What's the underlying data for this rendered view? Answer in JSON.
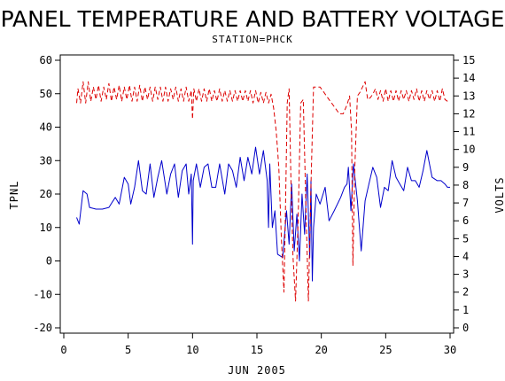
{
  "chart_data": {
    "type": "line",
    "title": "PANEL TEMPERATURE AND BATTERY VOLTAGE",
    "subtitle": "STATION=PHCK",
    "xlabel": "JUN 2005",
    "ylabel_left": "TPNL",
    "ylabel_right": "VOLTS",
    "xlim": [
      0,
      30
    ],
    "ylim_left": [
      -20,
      60
    ],
    "ylim_right": [
      0,
      15
    ],
    "x_ticks": [
      0,
      5,
      10,
      15,
      20,
      25,
      30
    ],
    "y_ticks_left": [
      -20,
      -10,
      0,
      10,
      20,
      30,
      40,
      50,
      60
    ],
    "y_ticks_right": [
      0,
      1,
      2,
      3,
      4,
      5,
      6,
      7,
      8,
      9,
      10,
      11,
      12,
      13,
      14,
      15
    ],
    "grid": false,
    "series": [
      {
        "axis": "left",
        "color": "#0000cc",
        "style": "solid",
        "points": [
          [
            1.0,
            13
          ],
          [
            1.2,
            11
          ],
          [
            1.5,
            21
          ],
          [
            1.8,
            20
          ],
          [
            2.0,
            16
          ],
          [
            2.5,
            15.5
          ],
          [
            3.0,
            15.5
          ],
          [
            3.5,
            16
          ],
          [
            4.0,
            19
          ],
          [
            4.3,
            17
          ],
          [
            4.7,
            25
          ],
          [
            5.0,
            23
          ],
          [
            5.2,
            17
          ],
          [
            5.5,
            22
          ],
          [
            5.8,
            30
          ],
          [
            6.1,
            21
          ],
          [
            6.4,
            20
          ],
          [
            6.7,
            29
          ],
          [
            7.0,
            19
          ],
          [
            7.3,
            25
          ],
          [
            7.6,
            30
          ],
          [
            8.0,
            20
          ],
          [
            8.3,
            26
          ],
          [
            8.6,
            29
          ],
          [
            8.9,
            19
          ],
          [
            9.2,
            27
          ],
          [
            9.5,
            29
          ],
          [
            9.7,
            20
          ],
          [
            9.9,
            26
          ],
          [
            10.0,
            5
          ],
          [
            10.05,
            24
          ],
          [
            10.3,
            29
          ],
          [
            10.6,
            22
          ],
          [
            10.9,
            28
          ],
          [
            11.2,
            29
          ],
          [
            11.5,
            22
          ],
          [
            11.8,
            22
          ],
          [
            12.1,
            29
          ],
          [
            12.5,
            20
          ],
          [
            12.8,
            29
          ],
          [
            13.1,
            27
          ],
          [
            13.4,
            22
          ],
          [
            13.7,
            31
          ],
          [
            14.0,
            24
          ],
          [
            14.3,
            31
          ],
          [
            14.6,
            26
          ],
          [
            14.9,
            34
          ],
          [
            15.2,
            26
          ],
          [
            15.5,
            33
          ],
          [
            15.8,
            24
          ],
          [
            15.9,
            10
          ],
          [
            16.0,
            29
          ],
          [
            16.2,
            10
          ],
          [
            16.4,
            15
          ],
          [
            16.6,
            2
          ],
          [
            17.0,
            1
          ],
          [
            17.3,
            15
          ],
          [
            17.5,
            5
          ],
          [
            17.7,
            23
          ],
          [
            17.9,
            3
          ],
          [
            18.1,
            14
          ],
          [
            18.3,
            0
          ],
          [
            18.5,
            20
          ],
          [
            18.7,
            8
          ],
          [
            18.9,
            26
          ],
          [
            19.1,
            1
          ],
          [
            19.2,
            24
          ],
          [
            19.3,
            -6
          ],
          [
            19.4,
            10
          ],
          [
            19.6,
            20
          ],
          [
            19.9,
            17
          ],
          [
            20.3,
            22
          ],
          [
            20.6,
            12
          ],
          [
            21.0,
            15
          ],
          [
            21.5,
            19
          ],
          [
            21.8,
            22
          ],
          [
            22.0,
            23
          ],
          [
            22.1,
            28
          ],
          [
            22.3,
            15
          ],
          [
            22.5,
            29
          ],
          [
            22.8,
            18
          ],
          [
            23.1,
            3
          ],
          [
            23.4,
            18
          ],
          [
            23.7,
            23
          ],
          [
            24.0,
            28
          ],
          [
            24.3,
            25
          ],
          [
            24.6,
            16
          ],
          [
            24.9,
            22
          ],
          [
            25.2,
            21
          ],
          [
            25.5,
            30
          ],
          [
            25.8,
            25
          ],
          [
            26.1,
            23
          ],
          [
            26.4,
            21
          ],
          [
            26.7,
            28
          ],
          [
            27.0,
            24
          ],
          [
            27.3,
            24
          ],
          [
            27.6,
            22
          ],
          [
            27.9,
            27
          ],
          [
            28.2,
            33
          ],
          [
            28.6,
            25
          ],
          [
            29.0,
            24
          ],
          [
            29.3,
            24
          ],
          [
            29.6,
            23
          ],
          [
            29.8,
            22
          ],
          [
            30.0,
            22
          ]
        ]
      },
      {
        "axis": "right",
        "color": "#dd0000",
        "style": "dashed",
        "points": [
          [
            1.0,
            12.6
          ],
          [
            1.1,
            13.4
          ],
          [
            1.3,
            12.6
          ],
          [
            1.5,
            13.8
          ],
          [
            1.7,
            12.6
          ],
          [
            1.9,
            13.8
          ],
          [
            2.1,
            12.7
          ],
          [
            2.3,
            13.5
          ],
          [
            2.5,
            12.8
          ],
          [
            2.7,
            13.6
          ],
          [
            2.9,
            12.7
          ],
          [
            3.1,
            13.5
          ],
          [
            3.3,
            12.8
          ],
          [
            3.5,
            13.7
          ],
          [
            3.7,
            12.7
          ],
          [
            3.9,
            13.5
          ],
          [
            4.1,
            12.8
          ],
          [
            4.3,
            13.6
          ],
          [
            4.5,
            12.7
          ],
          [
            4.7,
            13.5
          ],
          [
            4.9,
            12.8
          ],
          [
            5.1,
            13.6
          ],
          [
            5.3,
            12.7
          ],
          [
            5.5,
            13.5
          ],
          [
            5.7,
            12.7
          ],
          [
            5.9,
            13.6
          ],
          [
            6.1,
            12.7
          ],
          [
            6.3,
            13.5
          ],
          [
            6.5,
            12.8
          ],
          [
            6.7,
            13.5
          ],
          [
            6.9,
            12.7
          ],
          [
            7.1,
            13.5
          ],
          [
            7.3,
            12.8
          ],
          [
            7.5,
            13.5
          ],
          [
            7.7,
            12.7
          ],
          [
            7.9,
            13.5
          ],
          [
            8.1,
            12.7
          ],
          [
            8.3,
            13.4
          ],
          [
            8.5,
            12.8
          ],
          [
            8.7,
            13.5
          ],
          [
            8.9,
            12.7
          ],
          [
            9.1,
            13.4
          ],
          [
            9.3,
            12.7
          ],
          [
            9.5,
            13.5
          ],
          [
            9.7,
            12.7
          ],
          [
            9.9,
            13.3
          ],
          [
            10.0,
            11.7
          ],
          [
            10.1,
            13.4
          ],
          [
            10.3,
            12.7
          ],
          [
            10.5,
            13.4
          ],
          [
            10.7,
            12.7
          ],
          [
            10.9,
            13.4
          ],
          [
            11.1,
            12.7
          ],
          [
            11.3,
            13.4
          ],
          [
            11.5,
            12.7
          ],
          [
            11.7,
            13.3
          ],
          [
            11.9,
            12.7
          ],
          [
            12.1,
            13.4
          ],
          [
            12.3,
            12.7
          ],
          [
            12.5,
            13.3
          ],
          [
            12.7,
            12.7
          ],
          [
            12.9,
            13.3
          ],
          [
            13.1,
            12.7
          ],
          [
            13.3,
            13.3
          ],
          [
            13.5,
            12.7
          ],
          [
            13.7,
            13.3
          ],
          [
            13.9,
            12.7
          ],
          [
            14.1,
            13.3
          ],
          [
            14.3,
            12.7
          ],
          [
            14.5,
            13.3
          ],
          [
            14.7,
            12.6
          ],
          [
            14.9,
            13.3
          ],
          [
            15.1,
            12.6
          ],
          [
            15.3,
            13.2
          ],
          [
            15.5,
            12.6
          ],
          [
            15.7,
            13.2
          ],
          [
            15.9,
            12.6
          ],
          [
            16.1,
            13.1
          ],
          [
            16.3,
            12.3
          ],
          [
            16.5,
            11.0
          ],
          [
            16.7,
            9.0
          ],
          [
            16.9,
            5.0
          ],
          [
            17.1,
            2.0
          ],
          [
            17.2,
            6.0
          ],
          [
            17.35,
            12.6
          ],
          [
            17.5,
            13.4
          ],
          [
            17.65,
            8.0
          ],
          [
            17.8,
            4.0
          ],
          [
            18.0,
            1.5
          ],
          [
            18.2,
            6.0
          ],
          [
            18.4,
            12.6
          ],
          [
            18.6,
            12.8
          ],
          [
            18.8,
            7.0
          ],
          [
            19.0,
            1.5
          ],
          [
            19.2,
            8.0
          ],
          [
            19.4,
            13.5
          ],
          [
            19.6,
            13.5
          ],
          [
            19.9,
            13.5
          ],
          [
            20.2,
            13.2
          ],
          [
            20.5,
            12.9
          ],
          [
            20.8,
            12.6
          ],
          [
            21.1,
            12.3
          ],
          [
            21.4,
            12.0
          ],
          [
            21.7,
            12.0
          ],
          [
            22.0,
            12.5
          ],
          [
            22.2,
            13.0
          ],
          [
            22.35,
            11.0
          ],
          [
            22.45,
            3.5
          ],
          [
            22.6,
            9.0
          ],
          [
            22.8,
            13.0
          ],
          [
            23.0,
            13.2
          ],
          [
            23.2,
            13.5
          ],
          [
            23.4,
            13.8
          ],
          [
            23.6,
            12.8
          ],
          [
            23.8,
            12.9
          ],
          [
            24.0,
            13.1
          ],
          [
            24.2,
            13.4
          ],
          [
            24.4,
            12.8
          ],
          [
            24.6,
            13.3
          ],
          [
            24.8,
            12.7
          ],
          [
            25.0,
            13.4
          ],
          [
            25.2,
            12.7
          ],
          [
            25.4,
            13.3
          ],
          [
            25.6,
            12.7
          ],
          [
            25.8,
            13.3
          ],
          [
            26.0,
            12.7
          ],
          [
            26.2,
            13.3
          ],
          [
            26.4,
            12.8
          ],
          [
            26.6,
            13.3
          ],
          [
            26.8,
            12.7
          ],
          [
            27.0,
            13.3
          ],
          [
            27.2,
            12.8
          ],
          [
            27.4,
            13.4
          ],
          [
            27.6,
            12.7
          ],
          [
            27.8,
            13.3
          ],
          [
            28.0,
            12.7
          ],
          [
            28.2,
            13.3
          ],
          [
            28.4,
            12.8
          ],
          [
            28.6,
            13.3
          ],
          [
            28.8,
            12.7
          ],
          [
            29.0,
            13.3
          ],
          [
            29.2,
            12.7
          ],
          [
            29.4,
            13.4
          ],
          [
            29.6,
            12.8
          ],
          [
            29.8,
            12.7
          ],
          [
            30.0,
            12.7
          ]
        ]
      }
    ]
  }
}
